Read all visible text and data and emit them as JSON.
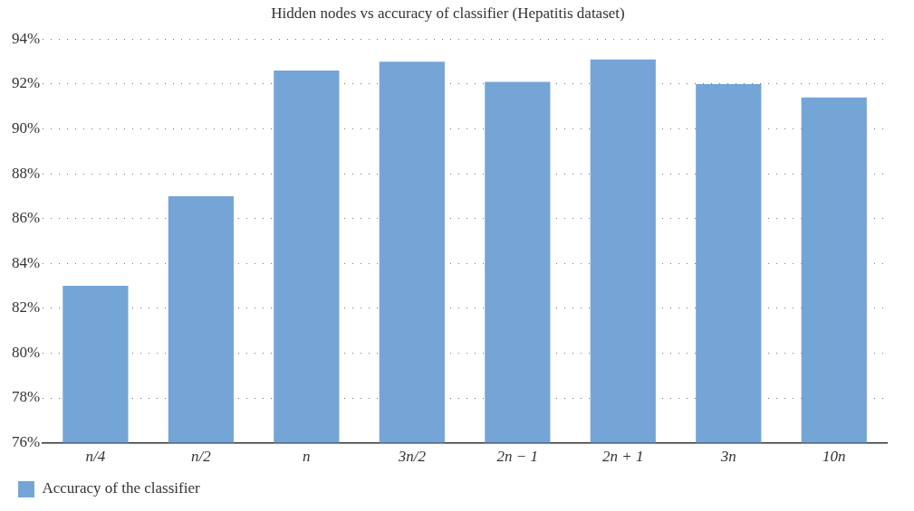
{
  "chart_data": {
    "type": "bar",
    "title": "Hidden nodes vs accuracy of classifier (Hepatitis dataset)",
    "categories": [
      "n/4",
      "n/2",
      "n",
      "3n/2",
      "2n − 1",
      "2n + 1",
      "3n",
      "10n"
    ],
    "series": [
      {
        "name": "Accuracy of the classifier",
        "color": "#75a5d7",
        "values": [
          83,
          87,
          92.6,
          93.0,
          92.1,
          93.1,
          92.0,
          91.4
        ]
      }
    ],
    "ylim": [
      76,
      94
    ],
    "yticks": [
      {
        "value": 76,
        "label": "76%"
      },
      {
        "value": 78,
        "label": "78%"
      },
      {
        "value": 80,
        "label": "80%"
      },
      {
        "value": 82,
        "label": "82%"
      },
      {
        "value": 84,
        "label": "84%"
      },
      {
        "value": 86,
        "label": "86%"
      },
      {
        "value": 88,
        "label": "88%"
      },
      {
        "value": 90,
        "label": "90%"
      },
      {
        "value": 92,
        "label": "92%"
      },
      {
        "value": 94,
        "label": "94%"
      }
    ],
    "grid": "y",
    "legend": "bottom left"
  }
}
